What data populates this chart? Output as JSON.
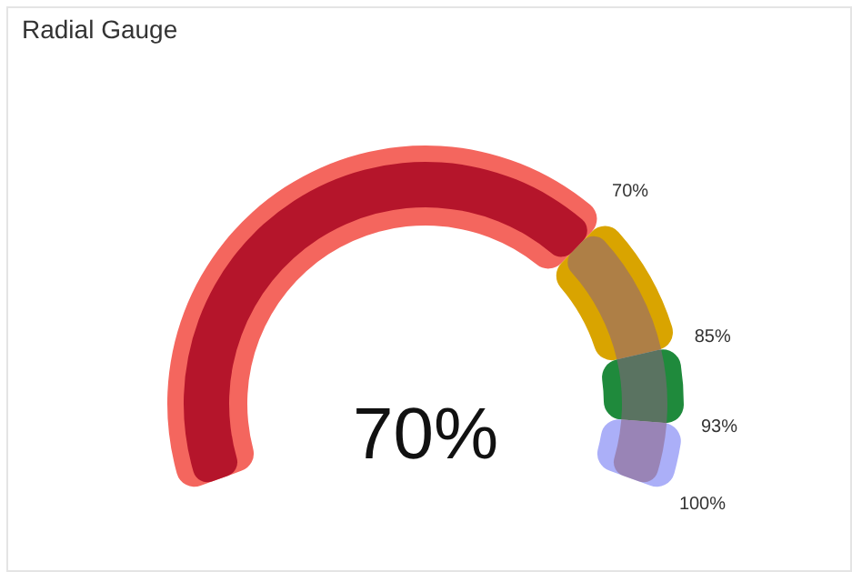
{
  "chart_data": {
    "type": "other",
    "title": "Radial Gauge",
    "data_labels": true,
    "values": [
      70,
      85,
      93,
      100
    ],
    "colors": [
      "#f4665e",
      "#d9a400",
      "#1f8a3c",
      "#abaff8"
    ],
    "value_labels": [
      "70%",
      "85%",
      "93%",
      "100%"
    ],
    "annotations": [
      "70%"
    ]
  }
}
